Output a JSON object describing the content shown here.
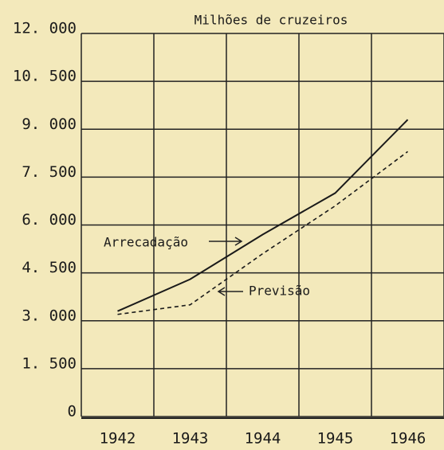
{
  "chart_data": {
    "type": "line",
    "y_axis_label": "Milhões de cruzeiros",
    "categories": [
      "1942",
      "1943",
      "1944",
      "1945",
      "1946"
    ],
    "series": [
      {
        "name": "Arrecadação",
        "color": "#1a1a1a",
        "dashed": false,
        "values": [
          3300,
          4300,
          5700,
          7000,
          9300
        ]
      },
      {
        "name": "Previsão",
        "color": "#1a1a1a",
        "dashed": true,
        "values": [
          3200,
          3500,
          5100,
          6600,
          8300
        ]
      }
    ],
    "ylim": [
      0,
      12000
    ],
    "yticks": [
      0,
      {
        "value": 1500,
        "label": "1. 500"
      },
      {
        "value": 3000,
        "label": "3. 000"
      },
      {
        "value": 4500,
        "label": "4. 500"
      },
      {
        "value": 6000,
        "label": "6. 000"
      },
      {
        "value": 7500,
        "label": "7. 500"
      },
      {
        "value": 9000,
        "label": "9. 000"
      },
      {
        "value": 10500,
        "label": "10. 500"
      },
      {
        "value": 12000,
        "label": "12. 000"
      }
    ],
    "grid": true
  }
}
